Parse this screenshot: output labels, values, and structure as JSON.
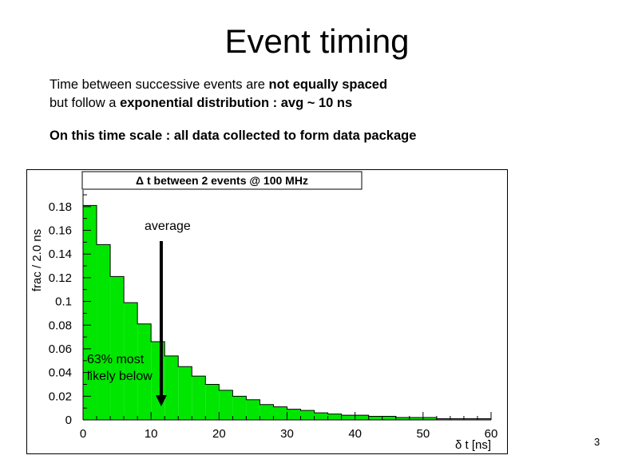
{
  "slide": {
    "title": "Event timing",
    "para1_line1_plain": "Time between successive events are ",
    "para1_line1_bold": "not equally spaced",
    "para1_line2_plain": "but follow a ",
    "para1_line2_bold": "exponential distribution : avg ~ 10 ns",
    "para2": "On this time scale : all data collected to form data package",
    "slide_number": "3"
  },
  "chart_data": {
    "type": "bar",
    "title": "Δ t between 2 events @ 100 MHz",
    "xlabel": "δ t [ns]",
    "ylabel": "frac / 2.0 ns",
    "xlim": [
      0,
      60
    ],
    "ylim": [
      0,
      0.19
    ],
    "bin_width": 2,
    "bin_edges_start": [
      0,
      2,
      4,
      6,
      8,
      10,
      12,
      14,
      16,
      18,
      20,
      22,
      24,
      26,
      28,
      30,
      32,
      34,
      36,
      38,
      40,
      42,
      44,
      46,
      48,
      50,
      52,
      54,
      56,
      58
    ],
    "values": [
      0.181,
      0.148,
      0.121,
      0.099,
      0.081,
      0.066,
      0.054,
      0.045,
      0.037,
      0.03,
      0.025,
      0.02,
      0.017,
      0.013,
      0.011,
      0.009,
      0.008,
      0.006,
      0.005,
      0.004,
      0.004,
      0.003,
      0.003,
      0.002,
      0.002,
      0.002,
      0.001,
      0.001,
      0.001,
      0.001
    ],
    "x_ticks": [
      "0",
      "10",
      "20",
      "30",
      "40",
      "50",
      "60"
    ],
    "y_ticks": [
      "0",
      "0.02",
      "0.04",
      "0.06",
      "0.08",
      "0.1",
      "0.12",
      "0.14",
      "0.16",
      "0.18"
    ],
    "fill_color": "#00e600",
    "annotations": {
      "average_label": "average",
      "below_label_line1": "63% most",
      "below_label_line2": "likely below",
      "arrow_x": 11.5
    },
    "grid": false
  }
}
